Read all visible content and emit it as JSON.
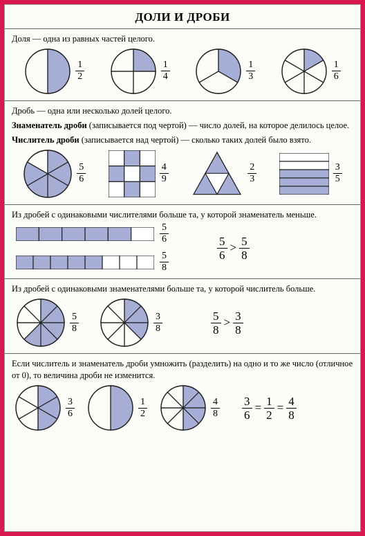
{
  "title": "ДОЛИ И ДРОБИ",
  "colors": {
    "fill": "#a6aed6",
    "stroke": "#222",
    "frameBorder": "#d91850",
    "pageBg": "#fcfcf8"
  },
  "section1": {
    "text": "Доля — одна из равных частей целого.",
    "items": [
      {
        "n": 1,
        "d": 2
      },
      {
        "n": 1,
        "d": 4
      },
      {
        "n": 1,
        "d": 3
      },
      {
        "n": 1,
        "d": 6
      }
    ]
  },
  "section2": {
    "p1": "Дробь — одна или несколько долей целого.",
    "p2a": "Знаменатель дроби",
    "p2b": " (записывается под чертой) — число долей, на которое делилось целое.",
    "p3a": "Числитель дроби",
    "p3b": " (записывается над чертой) — сколько таких долей было взято.",
    "items": [
      {
        "n": 5,
        "d": 6
      },
      {
        "n": 4,
        "d": 9
      },
      {
        "n": 2,
        "d": 3
      },
      {
        "n": 3,
        "d": 5
      }
    ]
  },
  "section3": {
    "text": "Из дробей с одинаковыми числителями больше та, у которой знаменатель меньше.",
    "bars": [
      {
        "filled": 5,
        "total": 6
      },
      {
        "filled": 5,
        "total": 8
      }
    ],
    "cmp": {
      "ln": 5,
      "ld": 6,
      "op": ">",
      "rn": 5,
      "rd": 8
    }
  },
  "section4": {
    "text": "Из дробей с одинаковыми знаменателями больше та, у которой числитель больше.",
    "pies": [
      {
        "n": 5,
        "d": 8
      },
      {
        "n": 3,
        "d": 8
      }
    ],
    "cmp": {
      "ln": 5,
      "ld": 8,
      "op": ">",
      "rn": 3,
      "rd": 8
    }
  },
  "section5": {
    "text": "Если числитель и знаменатель дроби умножить (разделить) на одно и то же число (отличное от 0), то величина дроби не изменится.",
    "pies": [
      {
        "n": 3,
        "d": 6
      },
      {
        "n": 1,
        "d": 2
      },
      {
        "n": 4,
        "d": 8
      }
    ],
    "eq": [
      {
        "n": 3,
        "d": 6
      },
      {
        "n": 1,
        "d": 2
      },
      {
        "n": 4,
        "d": 8
      }
    ]
  }
}
